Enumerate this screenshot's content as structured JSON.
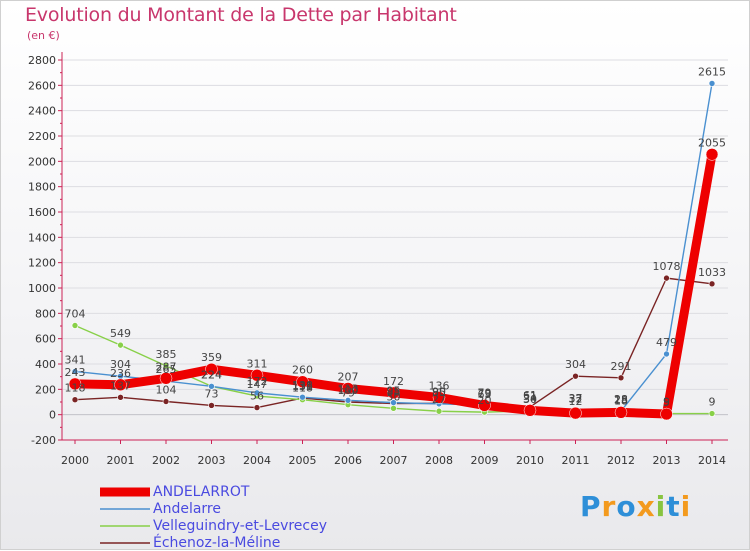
{
  "chart_data": {
    "type": "line",
    "title": "Evolution du Montant de la Dette par Habitant",
    "subtitle": "(en €)",
    "x": [
      "2000",
      "2001",
      "2002",
      "2003",
      "2004",
      "2005",
      "2006",
      "2007",
      "2008",
      "2009",
      "2010",
      "2011",
      "2012",
      "2013",
      "2014"
    ],
    "ylim": [
      -200,
      2800
    ],
    "yticks": [
      -200,
      0,
      200,
      400,
      600,
      800,
      1000,
      1200,
      1400,
      1600,
      1800,
      2000,
      2200,
      2400,
      2600,
      2800
    ],
    "series": [
      {
        "name": "ANDELARROT",
        "color": "#ee0000",
        "values": [
          243,
          236,
          287,
          359,
          311,
          260,
          207,
          172,
          136,
          73,
          34,
          12,
          18,
          5,
          2055
        ]
      },
      {
        "name": "Andelarre",
        "color": "#4a90d0",
        "values": [
          341,
          304,
          265,
          224,
          172,
          138,
          113,
          95,
          85,
          79,
          51,
          37,
          28,
          479,
          2615
        ]
      },
      {
        "name": "Velleguindry-et-Levrecey",
        "color": "#88d048",
        "values": [
          704,
          549,
          385,
          224,
          147,
          118,
          79,
          50,
          27,
          20,
          30,
          32,
          25,
          9,
          9
        ]
      },
      {
        "name": "Échenoz-la-Méline",
        "color": "#7a2424",
        "values": [
          118,
          137,
          104,
          73,
          56,
          131,
          100,
          88,
          90,
          69,
          61,
          304,
          291,
          1078,
          1033
        ]
      }
    ]
  },
  "brand": {
    "letters": [
      "P",
      "r",
      "o",
      "x",
      "i",
      "t",
      "i"
    ],
    "colors": [
      "#2e8fd8",
      "#f39a1e",
      "#2e8fd8",
      "#f39a1e",
      "#88c440",
      "#2e8fd8",
      "#f39a1e"
    ]
  }
}
